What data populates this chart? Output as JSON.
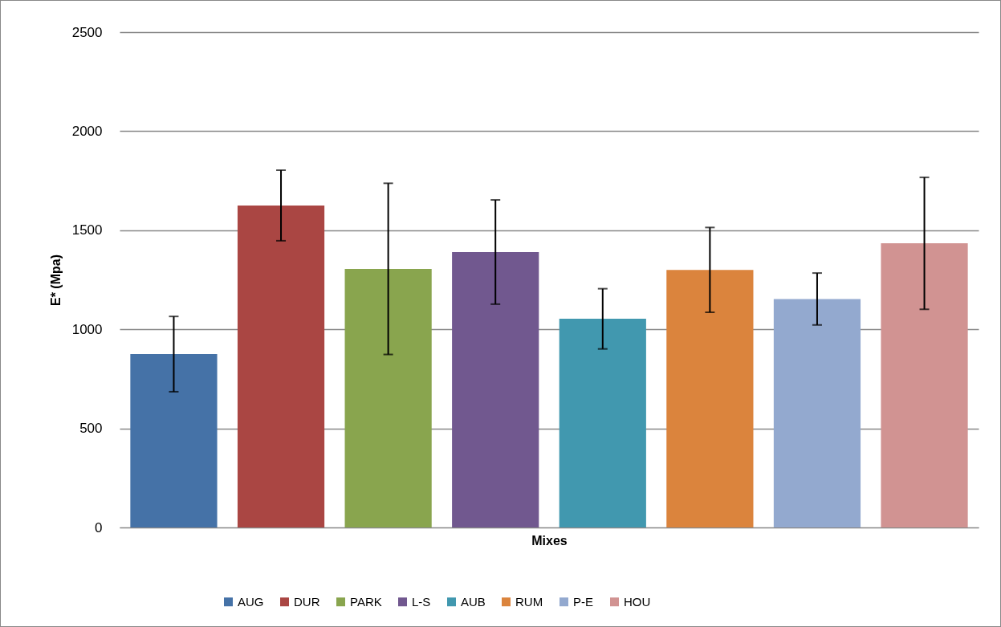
{
  "chart_data": {
    "type": "bar",
    "xlabel": "Mixes",
    "ylabel": "E* (Mpa)",
    "categories": [
      null,
      null,
      null,
      null,
      null,
      null,
      null,
      null
    ],
    "series": [
      {
        "name": "AUG",
        "color": "#4572a7",
        "values": [
          875,
          null,
          null,
          null,
          null,
          null,
          null,
          null
        ],
        "errors": [
          190,
          null,
          null,
          null,
          null,
          null,
          null,
          null
        ]
      },
      {
        "name": "DUR",
        "color": "#aa4643",
        "values": [
          null,
          1625,
          null,
          null,
          null,
          null,
          null,
          null
        ],
        "errors": [
          null,
          178,
          null,
          null,
          null,
          null,
          null,
          null
        ]
      },
      {
        "name": "PARK",
        "color": "#89a54e",
        "values": [
          null,
          null,
          1305,
          null,
          null,
          null,
          null,
          null
        ],
        "errors": [
          null,
          null,
          432,
          null,
          null,
          null,
          null,
          null
        ]
      },
      {
        "name": "L-S",
        "color": "#71588f",
        "values": [
          null,
          null,
          null,
          1390,
          null,
          null,
          null,
          null
        ],
        "errors": [
          null,
          null,
          null,
          263,
          null,
          null,
          null,
          null
        ]
      },
      {
        "name": "AUB",
        "color": "#4198af",
        "values": [
          null,
          null,
          null,
          null,
          1053,
          null,
          null,
          null
        ],
        "errors": [
          null,
          null,
          null,
          null,
          152,
          null,
          null,
          null
        ]
      },
      {
        "name": "RUM",
        "color": "#db843d",
        "values": [
          null,
          null,
          null,
          null,
          null,
          1300,
          null,
          null
        ],
        "errors": [
          null,
          null,
          null,
          null,
          null,
          214,
          null,
          null
        ]
      },
      {
        "name": "P-E",
        "color": "#93a9cf",
        "values": [
          null,
          null,
          null,
          null,
          null,
          null,
          1153,
          null
        ],
        "errors": [
          null,
          null,
          null,
          null,
          null,
          null,
          131,
          null
        ]
      },
      {
        "name": "HOU",
        "color": "#d19392",
        "values": [
          null,
          null,
          null,
          null,
          null,
          null,
          null,
          1434
        ],
        "errors": [
          null,
          null,
          null,
          null,
          null,
          null,
          null,
          333
        ]
      }
    ],
    "ylim": [
      0,
      2500
    ],
    "yticks": [
      0,
      500,
      1000,
      1500,
      2000,
      2500
    ],
    "grid": "y",
    "legend": "bottom"
  }
}
